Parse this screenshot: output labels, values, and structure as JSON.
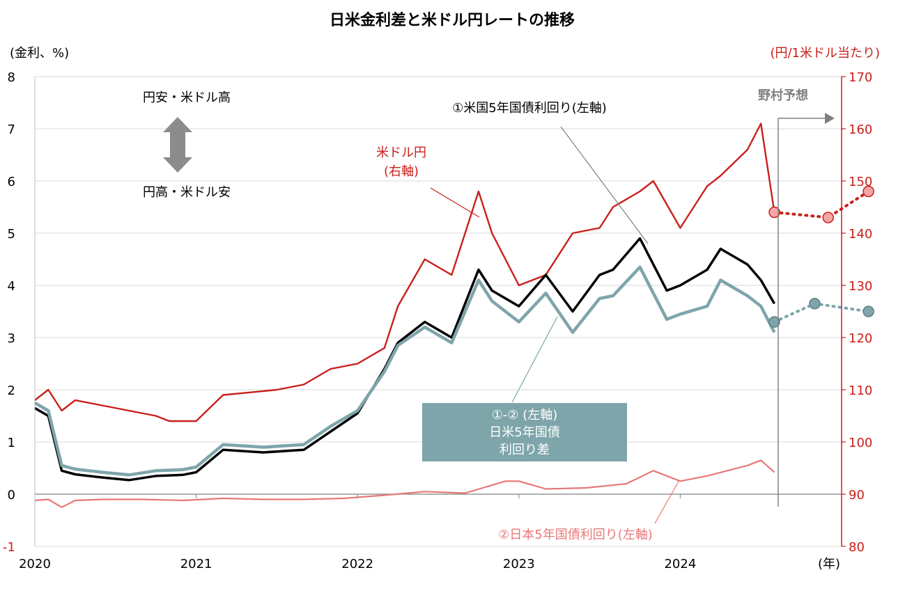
{
  "chart_data": {
    "type": "line",
    "title": "日米金利差と米ドル円レートの推移",
    "y_left_unit": "(金利、%)",
    "y_right_unit": "(円/1米ドル当たり)",
    "x_unit": "(年)",
    "ylim_left": [
      -1,
      8
    ],
    "ylim_right": [
      80,
      170
    ],
    "y_left_ticks": [
      "-1",
      "0",
      "1",
      "2",
      "3",
      "4",
      "5",
      "6",
      "7",
      "8"
    ],
    "y_right_ticks": [
      "80",
      "90",
      "100",
      "110",
      "120",
      "130",
      "140",
      "150",
      "160",
      "170"
    ],
    "x_ticks": [
      "2020",
      "2021",
      "2022",
      "2023",
      "2024"
    ],
    "legend_up": "円安・米ドル高",
    "legend_down": "円高・米ドル安",
    "forecast_label": "野村予想",
    "label_us5y": "①米国5年国債利回り(左軸)",
    "label_usdjpy_line1": "米ドル円",
    "label_usdjpy_line2": "(右軸)",
    "label_spread_line1": "①-② (左軸)",
    "label_spread_line2": "日米5年国債",
    "label_spread_line3": "利回り差",
    "label_jp5y": "②日本5年国債利回り(左軸)",
    "colors": {
      "usdjpy": "#c8201c",
      "us5y": "#000000",
      "spread": "#7ea5aa",
      "jp5y": "#e87878",
      "axis_right": "#c8201c",
      "grid": "#d9d9d9",
      "forecast": "#808080"
    },
    "series": [
      {
        "key": "usdjpy",
        "axis": "right",
        "name": "米ドル円",
        "x": [
          "2020-01",
          "2020-02",
          "2020-03",
          "2020-04",
          "2020-06",
          "2020-08",
          "2020-10",
          "2020-11",
          "2021-01",
          "2021-03",
          "2021-05",
          "2021-07",
          "2021-09",
          "2021-11",
          "2022-01",
          "2022-03",
          "2022-04",
          "2022-06",
          "2022-08",
          "2022-10",
          "2022-11",
          "2023-01",
          "2023-03",
          "2023-05",
          "2023-07",
          "2023-08",
          "2023-10",
          "2023-11",
          "2024-01",
          "2024-03",
          "2024-04",
          "2024-06",
          "2024-07",
          "2024-08"
        ],
        "values": [
          108,
          110,
          106,
          108,
          107,
          106,
          105,
          104,
          104,
          109,
          109.5,
          110,
          111,
          114,
          115,
          118,
          126,
          135,
          132,
          148,
          140,
          130,
          132,
          140,
          141,
          145,
          148,
          150,
          141,
          149,
          151,
          156,
          161,
          144
        ]
      },
      {
        "key": "us5y",
        "axis": "left",
        "name": "①米国5年国債利回り",
        "x": [
          "2020-01",
          "2020-02",
          "2020-03",
          "2020-04",
          "2020-06",
          "2020-08",
          "2020-10",
          "2020-12",
          "2021-01",
          "2021-03",
          "2021-06",
          "2021-09",
          "2021-11",
          "2022-01",
          "2022-03",
          "2022-04",
          "2022-06",
          "2022-08",
          "2022-10",
          "2022-11",
          "2023-01",
          "2023-03",
          "2023-05",
          "2023-07",
          "2023-08",
          "2023-10",
          "2023-12",
          "2024-01",
          "2024-03",
          "2024-04",
          "2024-06",
          "2024-07",
          "2024-08"
        ],
        "values": [
          1.65,
          1.5,
          0.45,
          0.38,
          0.32,
          0.27,
          0.35,
          0.37,
          0.42,
          0.85,
          0.8,
          0.85,
          1.2,
          1.55,
          2.4,
          2.9,
          3.3,
          3.0,
          4.3,
          3.9,
          3.6,
          4.2,
          3.5,
          4.2,
          4.3,
          4.9,
          3.9,
          4.0,
          4.3,
          4.7,
          4.4,
          4.1,
          3.65
        ]
      },
      {
        "key": "spread",
        "axis": "left",
        "name": "①-② 日米5年国債利回り差",
        "x": [
          "2020-01",
          "2020-02",
          "2020-03",
          "2020-04",
          "2020-06",
          "2020-08",
          "2020-10",
          "2020-12",
          "2021-01",
          "2021-03",
          "2021-06",
          "2021-09",
          "2021-11",
          "2022-01",
          "2022-03",
          "2022-04",
          "2022-06",
          "2022-08",
          "2022-10",
          "2022-11",
          "2023-01",
          "2023-03",
          "2023-05",
          "2023-07",
          "2023-08",
          "2023-10",
          "2023-12",
          "2024-01",
          "2024-03",
          "2024-04",
          "2024-06",
          "2024-07",
          "2024-08"
        ],
        "values": [
          1.75,
          1.6,
          0.55,
          0.48,
          0.42,
          0.37,
          0.45,
          0.47,
          0.52,
          0.95,
          0.9,
          0.95,
          1.3,
          1.6,
          2.35,
          2.85,
          3.2,
          2.9,
          4.1,
          3.7,
          3.3,
          3.85,
          3.1,
          3.75,
          3.8,
          4.35,
          3.35,
          3.45,
          3.6,
          4.1,
          3.8,
          3.6,
          3.1
        ]
      },
      {
        "key": "jp5y",
        "axis": "left",
        "name": "②日本5年国債利回り",
        "x": [
          "2020-01",
          "2020-02",
          "2020-03",
          "2020-04",
          "2020-06",
          "2020-09",
          "2020-12",
          "2021-03",
          "2021-06",
          "2021-09",
          "2021-12",
          "2022-03",
          "2022-06",
          "2022-09",
          "2022-12",
          "2023-01",
          "2023-03",
          "2023-06",
          "2023-09",
          "2023-11",
          "2024-01",
          "2024-03",
          "2024-06",
          "2024-07",
          "2024-08"
        ],
        "values": [
          -0.12,
          -0.1,
          -0.25,
          -0.12,
          -0.1,
          -0.1,
          -0.12,
          -0.08,
          -0.1,
          -0.1,
          -0.08,
          -0.02,
          0.05,
          0.02,
          0.25,
          0.25,
          0.1,
          0.12,
          0.2,
          0.45,
          0.25,
          0.35,
          0.55,
          0.65,
          0.42
        ]
      }
    ],
    "forecast": [
      {
        "key": "usdjpy",
        "axis": "right",
        "x": [
          "2024-08",
          "2024-12",
          "2025-03"
        ],
        "values": [
          144,
          143,
          148
        ]
      },
      {
        "key": "spread",
        "axis": "left",
        "x": [
          "2024-08",
          "2024-11",
          "2025-03"
        ],
        "values": [
          3.3,
          3.65,
          3.5
        ]
      }
    ]
  }
}
